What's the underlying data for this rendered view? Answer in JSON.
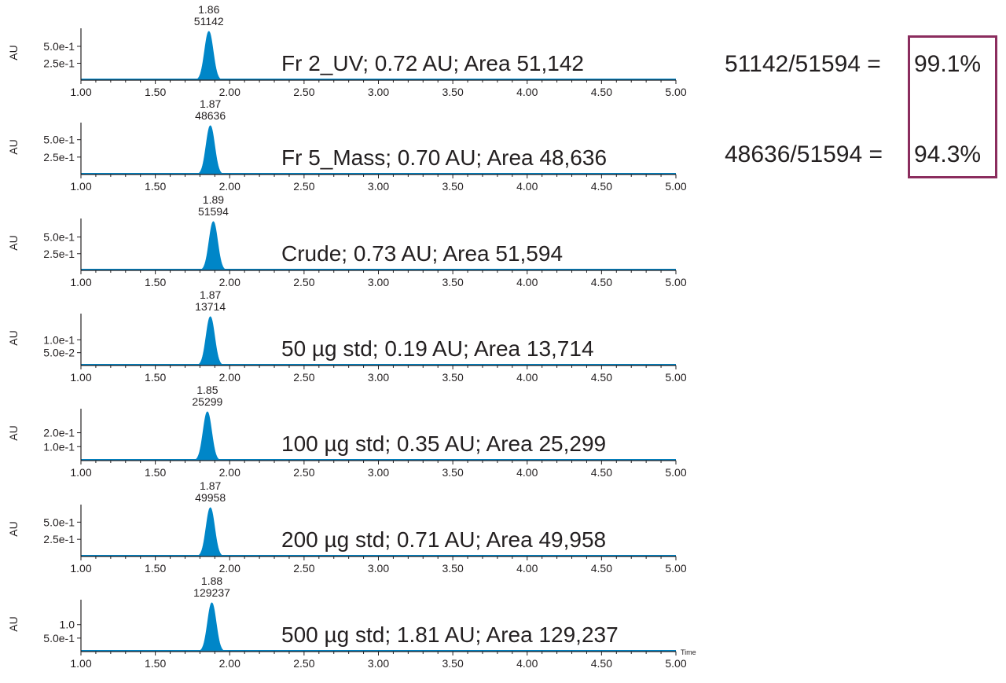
{
  "colors": {
    "peak": "#0086c8",
    "axis": "#231f20",
    "highlight": "#8b2d5e"
  },
  "chart_data": [
    {
      "type": "area",
      "ylabel": "AU",
      "xlim": [
        1.0,
        5.0
      ],
      "x_ticks": [
        "1.00",
        "1.50",
        "2.00",
        "2.50",
        "3.00",
        "3.50",
        "4.00",
        "4.50",
        "5.00"
      ],
      "y_ticks": [
        {
          "value": 0.5,
          "label": "5.0e-1"
        },
        {
          "value": 0.25,
          "label": "2.5e-1"
        }
      ],
      "ylim": [
        0,
        0.72
      ],
      "peak": {
        "x": 1.86,
        "height": 0.72,
        "rt_label": "1.86",
        "area_label": "51142"
      },
      "annotation": "Fr 2_UV; 0.72 AU; Area 51,142",
      "xlabel": ""
    },
    {
      "type": "area",
      "ylabel": "AU",
      "xlim": [
        1.0,
        5.0
      ],
      "x_ticks": [
        "1.00",
        "1.50",
        "2.00",
        "2.50",
        "3.00",
        "3.50",
        "4.00",
        "4.50",
        "5.00"
      ],
      "y_ticks": [
        {
          "value": 0.5,
          "label": "5.0e-1"
        },
        {
          "value": 0.25,
          "label": "2.5e-1"
        }
      ],
      "ylim": [
        0,
        0.7
      ],
      "peak": {
        "x": 1.87,
        "height": 0.7,
        "rt_label": "1.87",
        "area_label": "48636"
      },
      "annotation": "Fr 5_Mass; 0.70 AU; Area 48,636",
      "xlabel": ""
    },
    {
      "type": "area",
      "ylabel": "AU",
      "xlim": [
        1.0,
        5.0
      ],
      "x_ticks": [
        "1.00",
        "1.50",
        "2.00",
        "2.50",
        "3.00",
        "3.50",
        "4.00",
        "4.50",
        "5.00"
      ],
      "y_ticks": [
        {
          "value": 0.5,
          "label": "5.0e-1"
        },
        {
          "value": 0.25,
          "label": "2.5e-1"
        }
      ],
      "ylim": [
        0,
        0.73
      ],
      "peak": {
        "x": 1.89,
        "height": 0.73,
        "rt_label": "1.89",
        "area_label": "51594"
      },
      "annotation": "Crude; 0.73 AU; Area 51,594",
      "xlabel": ""
    },
    {
      "type": "area",
      "ylabel": "AU",
      "xlim": [
        1.0,
        5.0
      ],
      "x_ticks": [
        "1.00",
        "1.50",
        "2.00",
        "2.50",
        "3.00",
        "3.50",
        "4.00",
        "4.50",
        "5.00"
      ],
      "y_ticks": [
        {
          "value": 0.1,
          "label": "1.0e-1"
        },
        {
          "value": 0.05,
          "label": "5.0e-2"
        }
      ],
      "ylim": [
        0,
        0.19
      ],
      "peak": {
        "x": 1.87,
        "height": 0.19,
        "rt_label": "1.87",
        "area_label": "13714"
      },
      "annotation": "50 µg std; 0.19 AU; Area 13,714",
      "xlabel": ""
    },
    {
      "type": "area",
      "ylabel": "AU",
      "xlim": [
        1.0,
        5.0
      ],
      "x_ticks": [
        "1.00",
        "1.50",
        "2.00",
        "2.50",
        "3.00",
        "3.50",
        "4.00",
        "4.50",
        "5.00"
      ],
      "y_ticks": [
        {
          "value": 0.2,
          "label": "2.0e-1"
        },
        {
          "value": 0.1,
          "label": "1.0e-1"
        }
      ],
      "ylim": [
        0,
        0.35
      ],
      "peak": {
        "x": 1.85,
        "height": 0.35,
        "rt_label": "1.85",
        "area_label": "25299"
      },
      "annotation": "100 µg std; 0.35 AU; Area 25,299",
      "xlabel": ""
    },
    {
      "type": "area",
      "ylabel": "AU",
      "xlim": [
        1.0,
        5.0
      ],
      "x_ticks": [
        "1.00",
        "1.50",
        "2.00",
        "2.50",
        "3.00",
        "3.50",
        "4.00",
        "4.50",
        "5.00"
      ],
      "y_ticks": [
        {
          "value": 0.5,
          "label": "5.0e-1"
        },
        {
          "value": 0.25,
          "label": "2.5e-1"
        }
      ],
      "ylim": [
        0,
        0.71
      ],
      "peak": {
        "x": 1.87,
        "height": 0.71,
        "rt_label": "1.87",
        "area_label": "49958"
      },
      "annotation": "200 µg std; 0.71 AU; Area 49,958",
      "xlabel": ""
    },
    {
      "type": "area",
      "ylabel": "AU",
      "xlim": [
        1.0,
        5.0
      ],
      "x_ticks": [
        "1.00",
        "1.50",
        "2.00",
        "2.50",
        "3.00",
        "3.50",
        "4.00",
        "4.50",
        "5.00"
      ],
      "y_ticks": [
        {
          "value": 1.0,
          "label": "1.0"
        },
        {
          "value": 0.5,
          "label": "5.0e-1"
        }
      ],
      "ylim": [
        0,
        1.81
      ],
      "peak": {
        "x": 1.88,
        "height": 1.81,
        "rt_label": "1.88",
        "area_label": "129237"
      },
      "annotation": "500 µg std; 1.81 AU; Area 129,237",
      "xlabel": "Time"
    }
  ],
  "ratios": [
    {
      "expression": "51142/51594 =",
      "result": "99.1%"
    },
    {
      "expression": "48636/51594 =",
      "result": "94.3%"
    }
  ]
}
